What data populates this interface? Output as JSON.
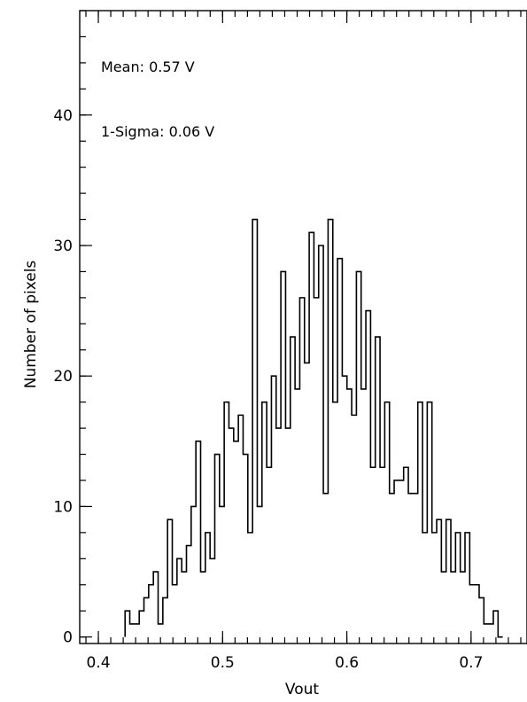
{
  "chart_data": {
    "type": "histogram",
    "xlabel": "Vout",
    "ylabel": "Number of pixels",
    "xlim": [
      0.385,
      0.745
    ],
    "ylim": [
      -0.5,
      48
    ],
    "xticks": [
      0.4,
      0.5,
      0.6,
      0.7
    ],
    "xtick_labels": [
      "0.4",
      "0.5",
      "0.6",
      "0.7"
    ],
    "yticks": [
      0,
      10,
      20,
      30,
      40
    ],
    "ytick_labels": [
      "0",
      "10",
      "20",
      "30",
      "40"
    ],
    "x_minor_step": 0.01,
    "y_minor_step": 2,
    "bin_start": 0.4215,
    "bin_width": 0.0038,
    "counts": [
      2,
      1,
      1,
      2,
      3,
      4,
      5,
      1,
      3,
      9,
      4,
      6,
      5,
      7,
      10,
      15,
      5,
      8,
      6,
      14,
      10,
      18,
      16,
      15,
      17,
      14,
      8,
      32,
      10,
      18,
      13,
      20,
      16,
      28,
      16,
      23,
      19,
      26,
      21,
      31,
      26,
      30,
      11,
      32,
      18,
      29,
      20,
      19,
      17,
      28,
      19,
      25,
      13,
      23,
      13,
      18,
      11,
      12,
      12,
      13,
      11,
      11,
      18,
      8,
      18,
      8,
      9,
      5,
      9,
      5,
      8,
      5,
      8,
      4,
      4,
      3,
      1,
      1,
      2,
      0
    ],
    "annotations": [
      "Mean: 0.57 V",
      "1-Sigma: 0.06 V"
    ],
    "grid": false,
    "line_color": "#000000"
  }
}
